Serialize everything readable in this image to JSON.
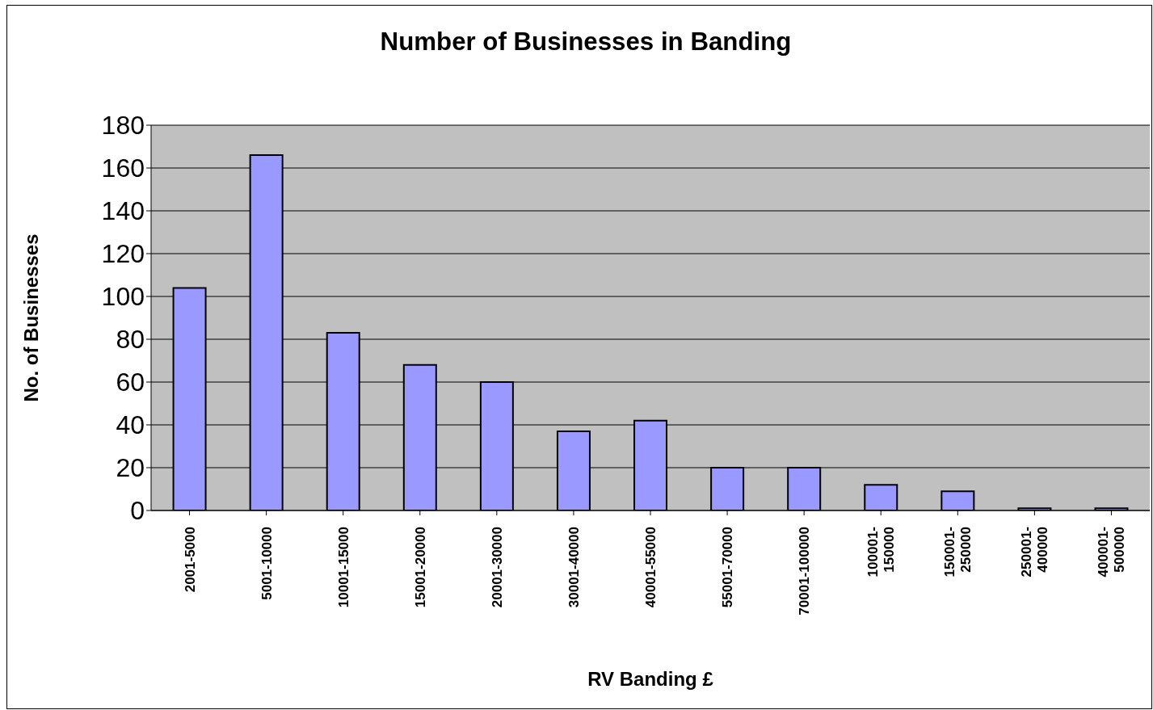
{
  "chart_data": {
    "type": "bar",
    "title": "Number of Businesses in Banding",
    "xlabel": "RV Banding £",
    "ylabel": "No. of Businesses",
    "categories": [
      "2001-5000",
      "5001-10000",
      "10001-15000",
      "15001-20000",
      "20001-30000",
      "30001-40000",
      "40001-55000",
      "55001-70000",
      "70001-100000",
      "100001-150000",
      "150001-250000",
      "250001-400000",
      "400001-500000"
    ],
    "values": [
      104,
      166,
      83,
      68,
      60,
      37,
      42,
      20,
      20,
      12,
      9,
      1,
      1
    ],
    "color": "#9999ff",
    "ylim": [
      0,
      180
    ],
    "yticks": [
      0,
      20,
      40,
      60,
      80,
      100,
      120,
      140,
      160,
      180
    ],
    "grid": "y",
    "legend": false
  }
}
